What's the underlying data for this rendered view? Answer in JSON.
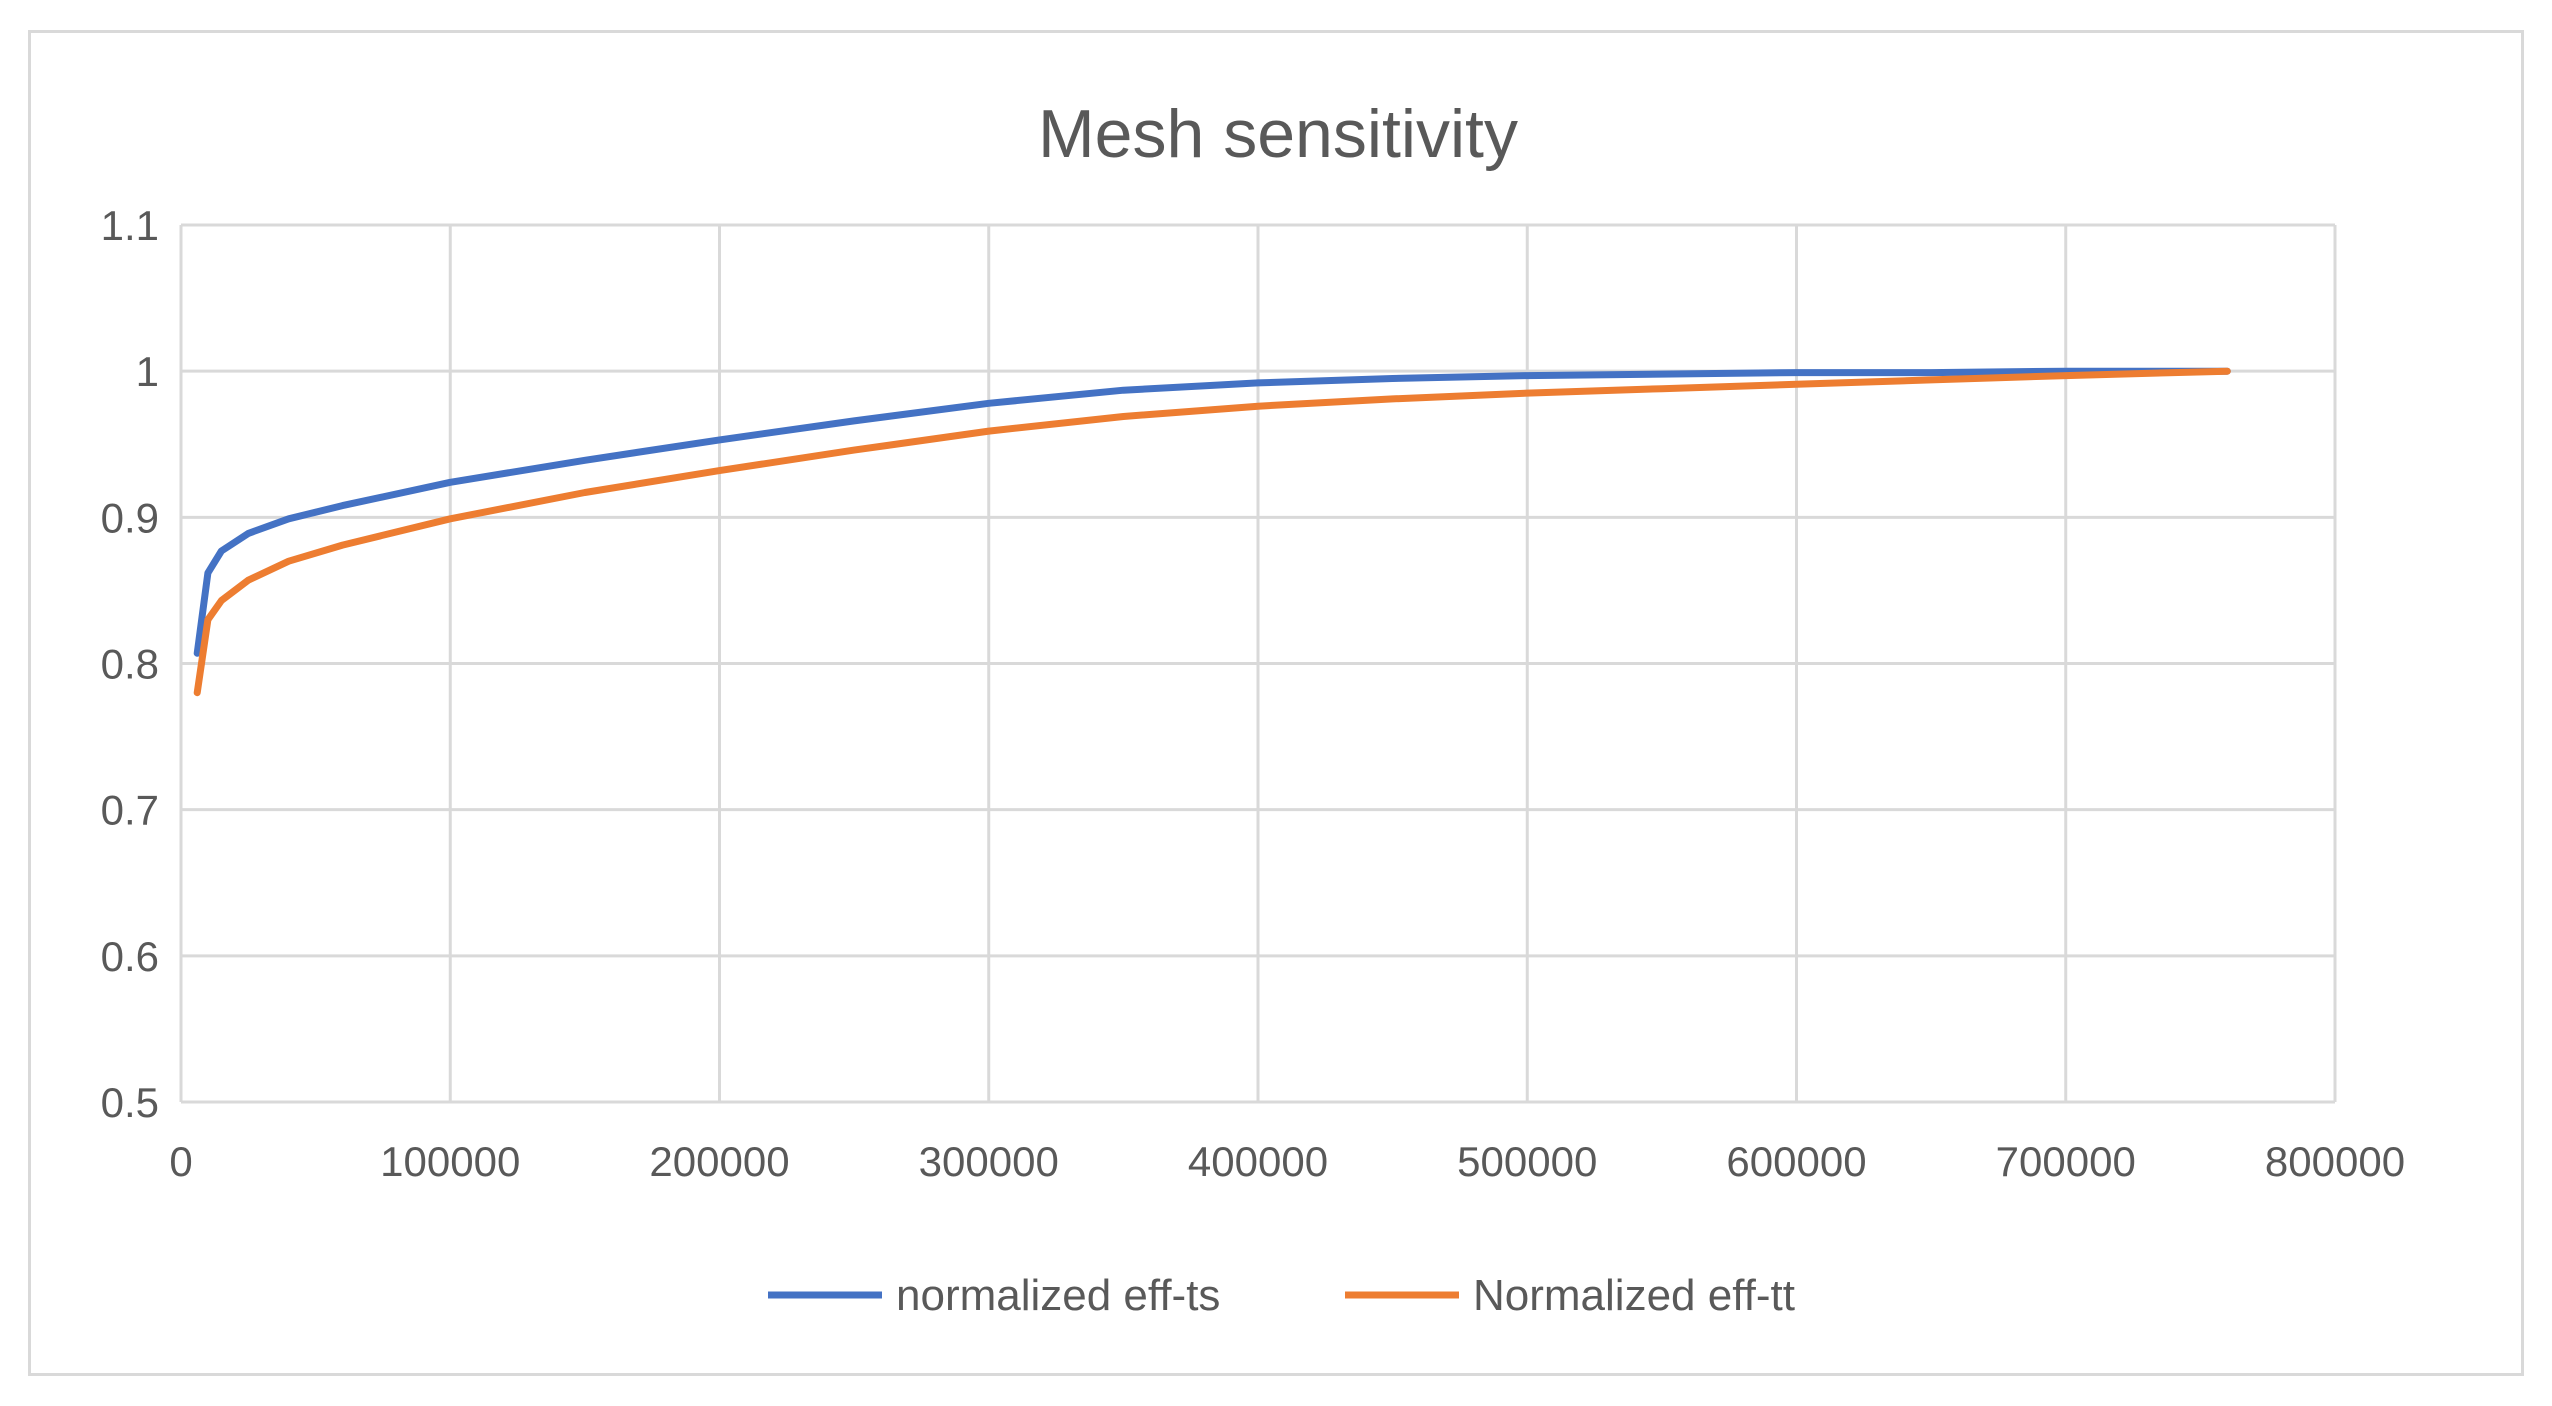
{
  "chart_data": {
    "type": "line",
    "title": "Mesh sensitivity",
    "xlabel": "",
    "ylabel": "",
    "xlim": [
      0,
      800000
    ],
    "ylim": [
      0.5,
      1.1
    ],
    "x_ticks": [
      0,
      100000,
      200000,
      300000,
      400000,
      500000,
      600000,
      700000,
      800000
    ],
    "x_tick_labels": [
      "0",
      "100000",
      "200000",
      "300000",
      "400000",
      "500000",
      "600000",
      "700000",
      "800000"
    ],
    "y_ticks": [
      0.5,
      0.6,
      0.7,
      0.8,
      0.9,
      1.0,
      1.1
    ],
    "y_tick_labels": [
      "0.5",
      "0.6",
      "0.7",
      "0.8",
      "0.9",
      "1",
      "1.1"
    ],
    "grid": true,
    "legend_position": "bottom",
    "series": [
      {
        "name": "normalized eff-ts",
        "color": "#4472c4",
        "x": [
          6000,
          10000,
          15000,
          25000,
          40000,
          60000,
          100000,
          150000,
          200000,
          250000,
          300000,
          350000,
          400000,
          450000,
          500000,
          550000,
          600000,
          650000,
          700000,
          760000
        ],
        "y": [
          0.807,
          0.862,
          0.877,
          0.889,
          0.899,
          0.908,
          0.924,
          0.939,
          0.953,
          0.966,
          0.978,
          0.987,
          0.992,
          0.995,
          0.997,
          0.998,
          0.999,
          0.999,
          1.0,
          1.0
        ]
      },
      {
        "name": "Normalized eff-tt",
        "color": "#ed7d31",
        "x": [
          6000,
          10000,
          15000,
          25000,
          40000,
          60000,
          100000,
          150000,
          200000,
          250000,
          300000,
          350000,
          400000,
          450000,
          500000,
          550000,
          600000,
          650000,
          700000,
          760000
        ],
        "y": [
          0.78,
          0.83,
          0.843,
          0.857,
          0.87,
          0.881,
          0.899,
          0.917,
          0.932,
          0.946,
          0.959,
          0.969,
          0.976,
          0.981,
          0.985,
          0.988,
          0.991,
          0.994,
          0.997,
          1.0
        ]
      }
    ]
  }
}
